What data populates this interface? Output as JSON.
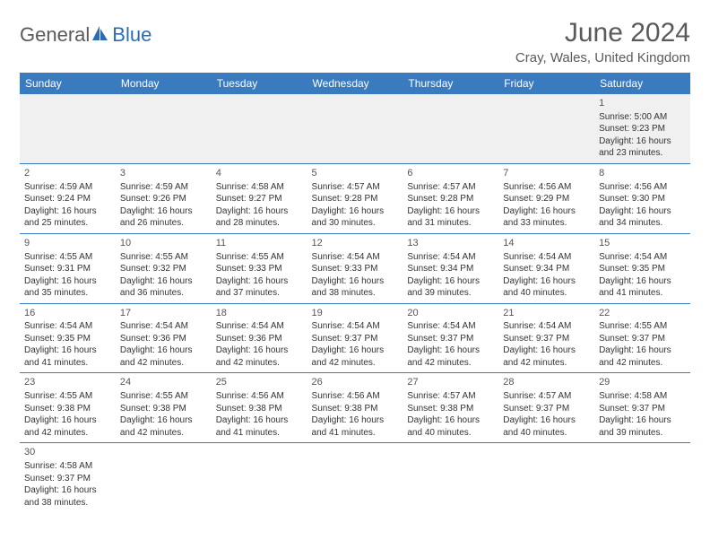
{
  "brand": {
    "name_part1": "General",
    "name_part2": "Blue",
    "text_color": "#5a5a5a",
    "accent_color": "#2a6db5"
  },
  "title": "June 2024",
  "location": "Cray, Wales, United Kingdom",
  "header_bg": "#3a7bbf",
  "header_fg": "#ffffff",
  "divider_color": "#3a7bbf",
  "empty_bg": "#f0f0f0",
  "day_headers": [
    "Sunday",
    "Monday",
    "Tuesday",
    "Wednesday",
    "Thursday",
    "Friday",
    "Saturday"
  ],
  "weeks": [
    [
      null,
      null,
      null,
      null,
      null,
      null,
      {
        "n": "1",
        "sr": "Sunrise: 5:00 AM",
        "ss": "Sunset: 9:23 PM",
        "d1": "Daylight: 16 hours",
        "d2": "and 23 minutes."
      }
    ],
    [
      {
        "n": "2",
        "sr": "Sunrise: 4:59 AM",
        "ss": "Sunset: 9:24 PM",
        "d1": "Daylight: 16 hours",
        "d2": "and 25 minutes."
      },
      {
        "n": "3",
        "sr": "Sunrise: 4:59 AM",
        "ss": "Sunset: 9:26 PM",
        "d1": "Daylight: 16 hours",
        "d2": "and 26 minutes."
      },
      {
        "n": "4",
        "sr": "Sunrise: 4:58 AM",
        "ss": "Sunset: 9:27 PM",
        "d1": "Daylight: 16 hours",
        "d2": "and 28 minutes."
      },
      {
        "n": "5",
        "sr": "Sunrise: 4:57 AM",
        "ss": "Sunset: 9:28 PM",
        "d1": "Daylight: 16 hours",
        "d2": "and 30 minutes."
      },
      {
        "n": "6",
        "sr": "Sunrise: 4:57 AM",
        "ss": "Sunset: 9:28 PM",
        "d1": "Daylight: 16 hours",
        "d2": "and 31 minutes."
      },
      {
        "n": "7",
        "sr": "Sunrise: 4:56 AM",
        "ss": "Sunset: 9:29 PM",
        "d1": "Daylight: 16 hours",
        "d2": "and 33 minutes."
      },
      {
        "n": "8",
        "sr": "Sunrise: 4:56 AM",
        "ss": "Sunset: 9:30 PM",
        "d1": "Daylight: 16 hours",
        "d2": "and 34 minutes."
      }
    ],
    [
      {
        "n": "9",
        "sr": "Sunrise: 4:55 AM",
        "ss": "Sunset: 9:31 PM",
        "d1": "Daylight: 16 hours",
        "d2": "and 35 minutes."
      },
      {
        "n": "10",
        "sr": "Sunrise: 4:55 AM",
        "ss": "Sunset: 9:32 PM",
        "d1": "Daylight: 16 hours",
        "d2": "and 36 minutes."
      },
      {
        "n": "11",
        "sr": "Sunrise: 4:55 AM",
        "ss": "Sunset: 9:33 PM",
        "d1": "Daylight: 16 hours",
        "d2": "and 37 minutes."
      },
      {
        "n": "12",
        "sr": "Sunrise: 4:54 AM",
        "ss": "Sunset: 9:33 PM",
        "d1": "Daylight: 16 hours",
        "d2": "and 38 minutes."
      },
      {
        "n": "13",
        "sr": "Sunrise: 4:54 AM",
        "ss": "Sunset: 9:34 PM",
        "d1": "Daylight: 16 hours",
        "d2": "and 39 minutes."
      },
      {
        "n": "14",
        "sr": "Sunrise: 4:54 AM",
        "ss": "Sunset: 9:34 PM",
        "d1": "Daylight: 16 hours",
        "d2": "and 40 minutes."
      },
      {
        "n": "15",
        "sr": "Sunrise: 4:54 AM",
        "ss": "Sunset: 9:35 PM",
        "d1": "Daylight: 16 hours",
        "d2": "and 41 minutes."
      }
    ],
    [
      {
        "n": "16",
        "sr": "Sunrise: 4:54 AM",
        "ss": "Sunset: 9:35 PM",
        "d1": "Daylight: 16 hours",
        "d2": "and 41 minutes."
      },
      {
        "n": "17",
        "sr": "Sunrise: 4:54 AM",
        "ss": "Sunset: 9:36 PM",
        "d1": "Daylight: 16 hours",
        "d2": "and 42 minutes."
      },
      {
        "n": "18",
        "sr": "Sunrise: 4:54 AM",
        "ss": "Sunset: 9:36 PM",
        "d1": "Daylight: 16 hours",
        "d2": "and 42 minutes."
      },
      {
        "n": "19",
        "sr": "Sunrise: 4:54 AM",
        "ss": "Sunset: 9:37 PM",
        "d1": "Daylight: 16 hours",
        "d2": "and 42 minutes."
      },
      {
        "n": "20",
        "sr": "Sunrise: 4:54 AM",
        "ss": "Sunset: 9:37 PM",
        "d1": "Daylight: 16 hours",
        "d2": "and 42 minutes."
      },
      {
        "n": "21",
        "sr": "Sunrise: 4:54 AM",
        "ss": "Sunset: 9:37 PM",
        "d1": "Daylight: 16 hours",
        "d2": "and 42 minutes."
      },
      {
        "n": "22",
        "sr": "Sunrise: 4:55 AM",
        "ss": "Sunset: 9:37 PM",
        "d1": "Daylight: 16 hours",
        "d2": "and 42 minutes."
      }
    ],
    [
      {
        "n": "23",
        "sr": "Sunrise: 4:55 AM",
        "ss": "Sunset: 9:38 PM",
        "d1": "Daylight: 16 hours",
        "d2": "and 42 minutes."
      },
      {
        "n": "24",
        "sr": "Sunrise: 4:55 AM",
        "ss": "Sunset: 9:38 PM",
        "d1": "Daylight: 16 hours",
        "d2": "and 42 minutes."
      },
      {
        "n": "25",
        "sr": "Sunrise: 4:56 AM",
        "ss": "Sunset: 9:38 PM",
        "d1": "Daylight: 16 hours",
        "d2": "and 41 minutes."
      },
      {
        "n": "26",
        "sr": "Sunrise: 4:56 AM",
        "ss": "Sunset: 9:38 PM",
        "d1": "Daylight: 16 hours",
        "d2": "and 41 minutes."
      },
      {
        "n": "27",
        "sr": "Sunrise: 4:57 AM",
        "ss": "Sunset: 9:38 PM",
        "d1": "Daylight: 16 hours",
        "d2": "and 40 minutes."
      },
      {
        "n": "28",
        "sr": "Sunrise: 4:57 AM",
        "ss": "Sunset: 9:37 PM",
        "d1": "Daylight: 16 hours",
        "d2": "and 40 minutes."
      },
      {
        "n": "29",
        "sr": "Sunrise: 4:58 AM",
        "ss": "Sunset: 9:37 PM",
        "d1": "Daylight: 16 hours",
        "d2": "and 39 minutes."
      }
    ],
    [
      {
        "n": "30",
        "sr": "Sunrise: 4:58 AM",
        "ss": "Sunset: 9:37 PM",
        "d1": "Daylight: 16 hours",
        "d2": "and 38 minutes."
      },
      null,
      null,
      null,
      null,
      null,
      null
    ]
  ]
}
